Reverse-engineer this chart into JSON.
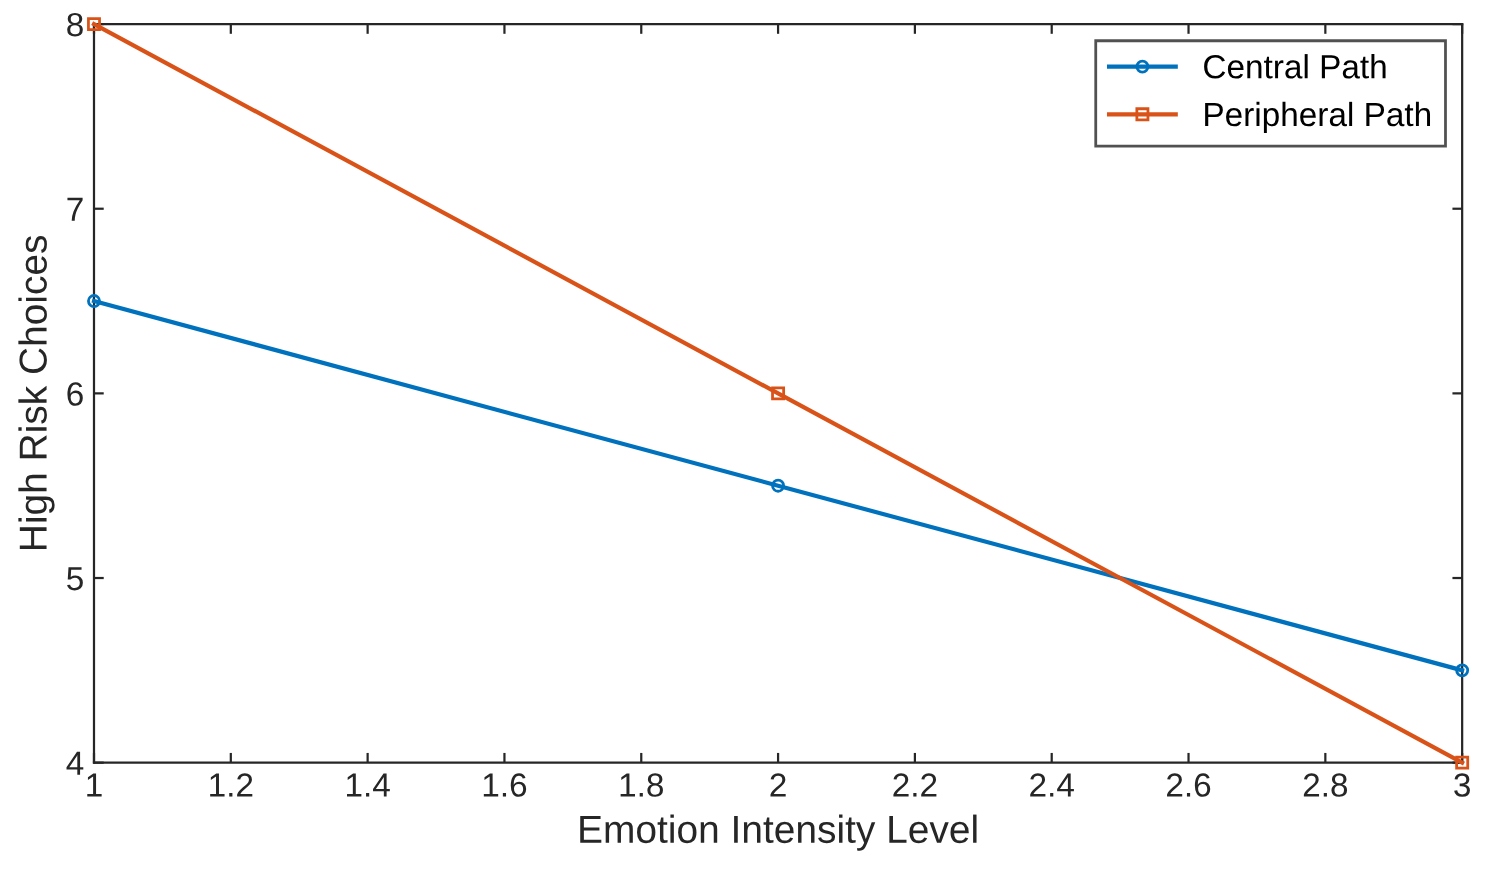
{
  "chart_data": {
    "type": "line",
    "xlabel": "Emotion Intensity Level",
    "ylabel": "High Risk Choices",
    "x": [
      1,
      2,
      3
    ],
    "series": [
      {
        "name": "Central Path",
        "color": "#0072bd",
        "values": [
          6.5,
          5.5,
          4.5
        ],
        "marker": "circle"
      },
      {
        "name": "Peripheral Path",
        "color": "#d95319",
        "values": [
          8,
          6,
          4
        ],
        "marker": "square"
      }
    ],
    "xlim": [
      1,
      3
    ],
    "ylim": [
      4,
      8
    ],
    "xticks": [
      1,
      1.2,
      1.4,
      1.6,
      1.8,
      2,
      2.2,
      2.4,
      2.6,
      2.8,
      3
    ],
    "yticks": [
      4,
      5,
      6,
      7,
      8
    ],
    "grid": false,
    "legend": "top right",
    "line_style": "solid"
  }
}
